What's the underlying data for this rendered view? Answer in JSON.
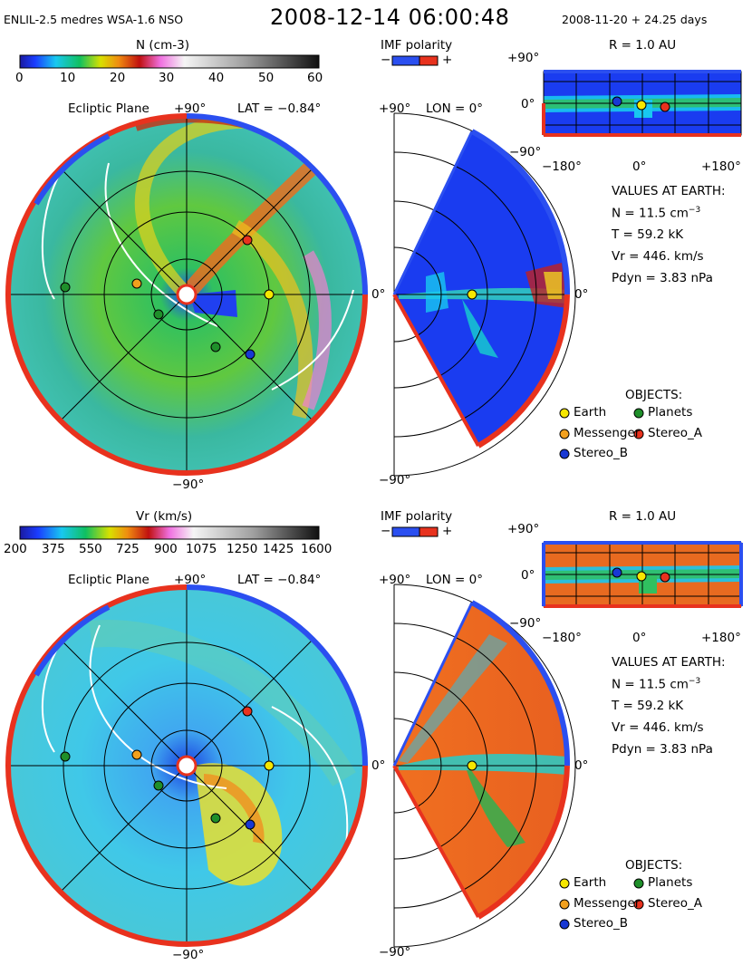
{
  "header": {
    "model": "ENLIL-2.5 medres WSA-1.6 NSO",
    "datetime": "2008-12-14  06:00:48",
    "reference": "2008-11-20 + 24.25 days"
  },
  "colors": {
    "earth": "#f6e700",
    "planets": "#1f8f2a",
    "messenger": "#f2a01d",
    "stereo_a": "#e8321e",
    "stereo_b": "#1838d4",
    "imf_positive": "#e8321e",
    "imf_negative": "#2b4ff0"
  },
  "panels": [
    {
      "id": "density",
      "colorbar": {
        "title": "N (cm-3)",
        "ticks": [
          "0",
          "10",
          "20",
          "30",
          "40",
          "50",
          "60"
        ]
      },
      "imf": {
        "title": "IMF polarity",
        "minus": "−",
        "plus": "+"
      },
      "ecliptic": {
        "title": "Ecliptic Plane",
        "top": "+90°",
        "lat": "LAT = −0.84°",
        "bottom": "−90°"
      },
      "meridional": {
        "top": "+90°",
        "lon": "LON = 0°",
        "left": "0°",
        "right": "0°",
        "bottom": "−90°"
      },
      "map": {
        "title": "R = 1.0 AU",
        "y_top": "+90°",
        "y_mid": "0°",
        "y_bot": "−90°",
        "x_left": "−180°",
        "x_mid": "0°",
        "x_right": "+180°"
      },
      "values": {
        "heading": "VALUES AT EARTH:",
        "n_label": "N = 11.5 cm",
        "n_exp": "−3",
        "t": "T = 59.2 kK",
        "vr": "Vr = 446. km/s",
        "pdyn": "Pdyn = 3.83 nPa"
      },
      "objects": {
        "heading": "OBJECTS:",
        "earth": "Earth",
        "planets": "Planets",
        "messenger": "Messenger",
        "stereo_a": "Stereo_A",
        "stereo_b": "Stereo_B"
      }
    },
    {
      "id": "velocity",
      "colorbar": {
        "title": "Vr (km/s)",
        "ticks": [
          "200",
          "375",
          "550",
          "725",
          "900",
          "1075",
          "1250",
          "1425",
          "1600"
        ]
      },
      "imf": {
        "title": "IMF polarity",
        "minus": "−",
        "plus": "+"
      },
      "ecliptic": {
        "title": "Ecliptic Plane",
        "top": "+90°",
        "lat": "LAT = −0.84°",
        "bottom": "−90°"
      },
      "meridional": {
        "top": "+90°",
        "lon": "LON = 0°",
        "left": "0°",
        "right": "0°",
        "bottom": "−90°"
      },
      "map": {
        "title": "R = 1.0 AU",
        "y_top": "+90°",
        "y_mid": "0°",
        "y_bot": "−90°",
        "x_left": "−180°",
        "x_mid": "0°",
        "x_right": "+180°"
      },
      "values": {
        "heading": "VALUES AT EARTH:",
        "n_label": "N = 11.5 cm",
        "n_exp": "−3",
        "t": "T = 59.2 kK",
        "vr": "Vr = 446. km/s",
        "pdyn": "Pdyn = 3.83 nPa"
      },
      "objects": {
        "heading": "OBJECTS:",
        "earth": "Earth",
        "planets": "Planets",
        "messenger": "Messenger",
        "stereo_a": "Stereo_A",
        "stereo_b": "Stereo_B"
      }
    }
  ]
}
